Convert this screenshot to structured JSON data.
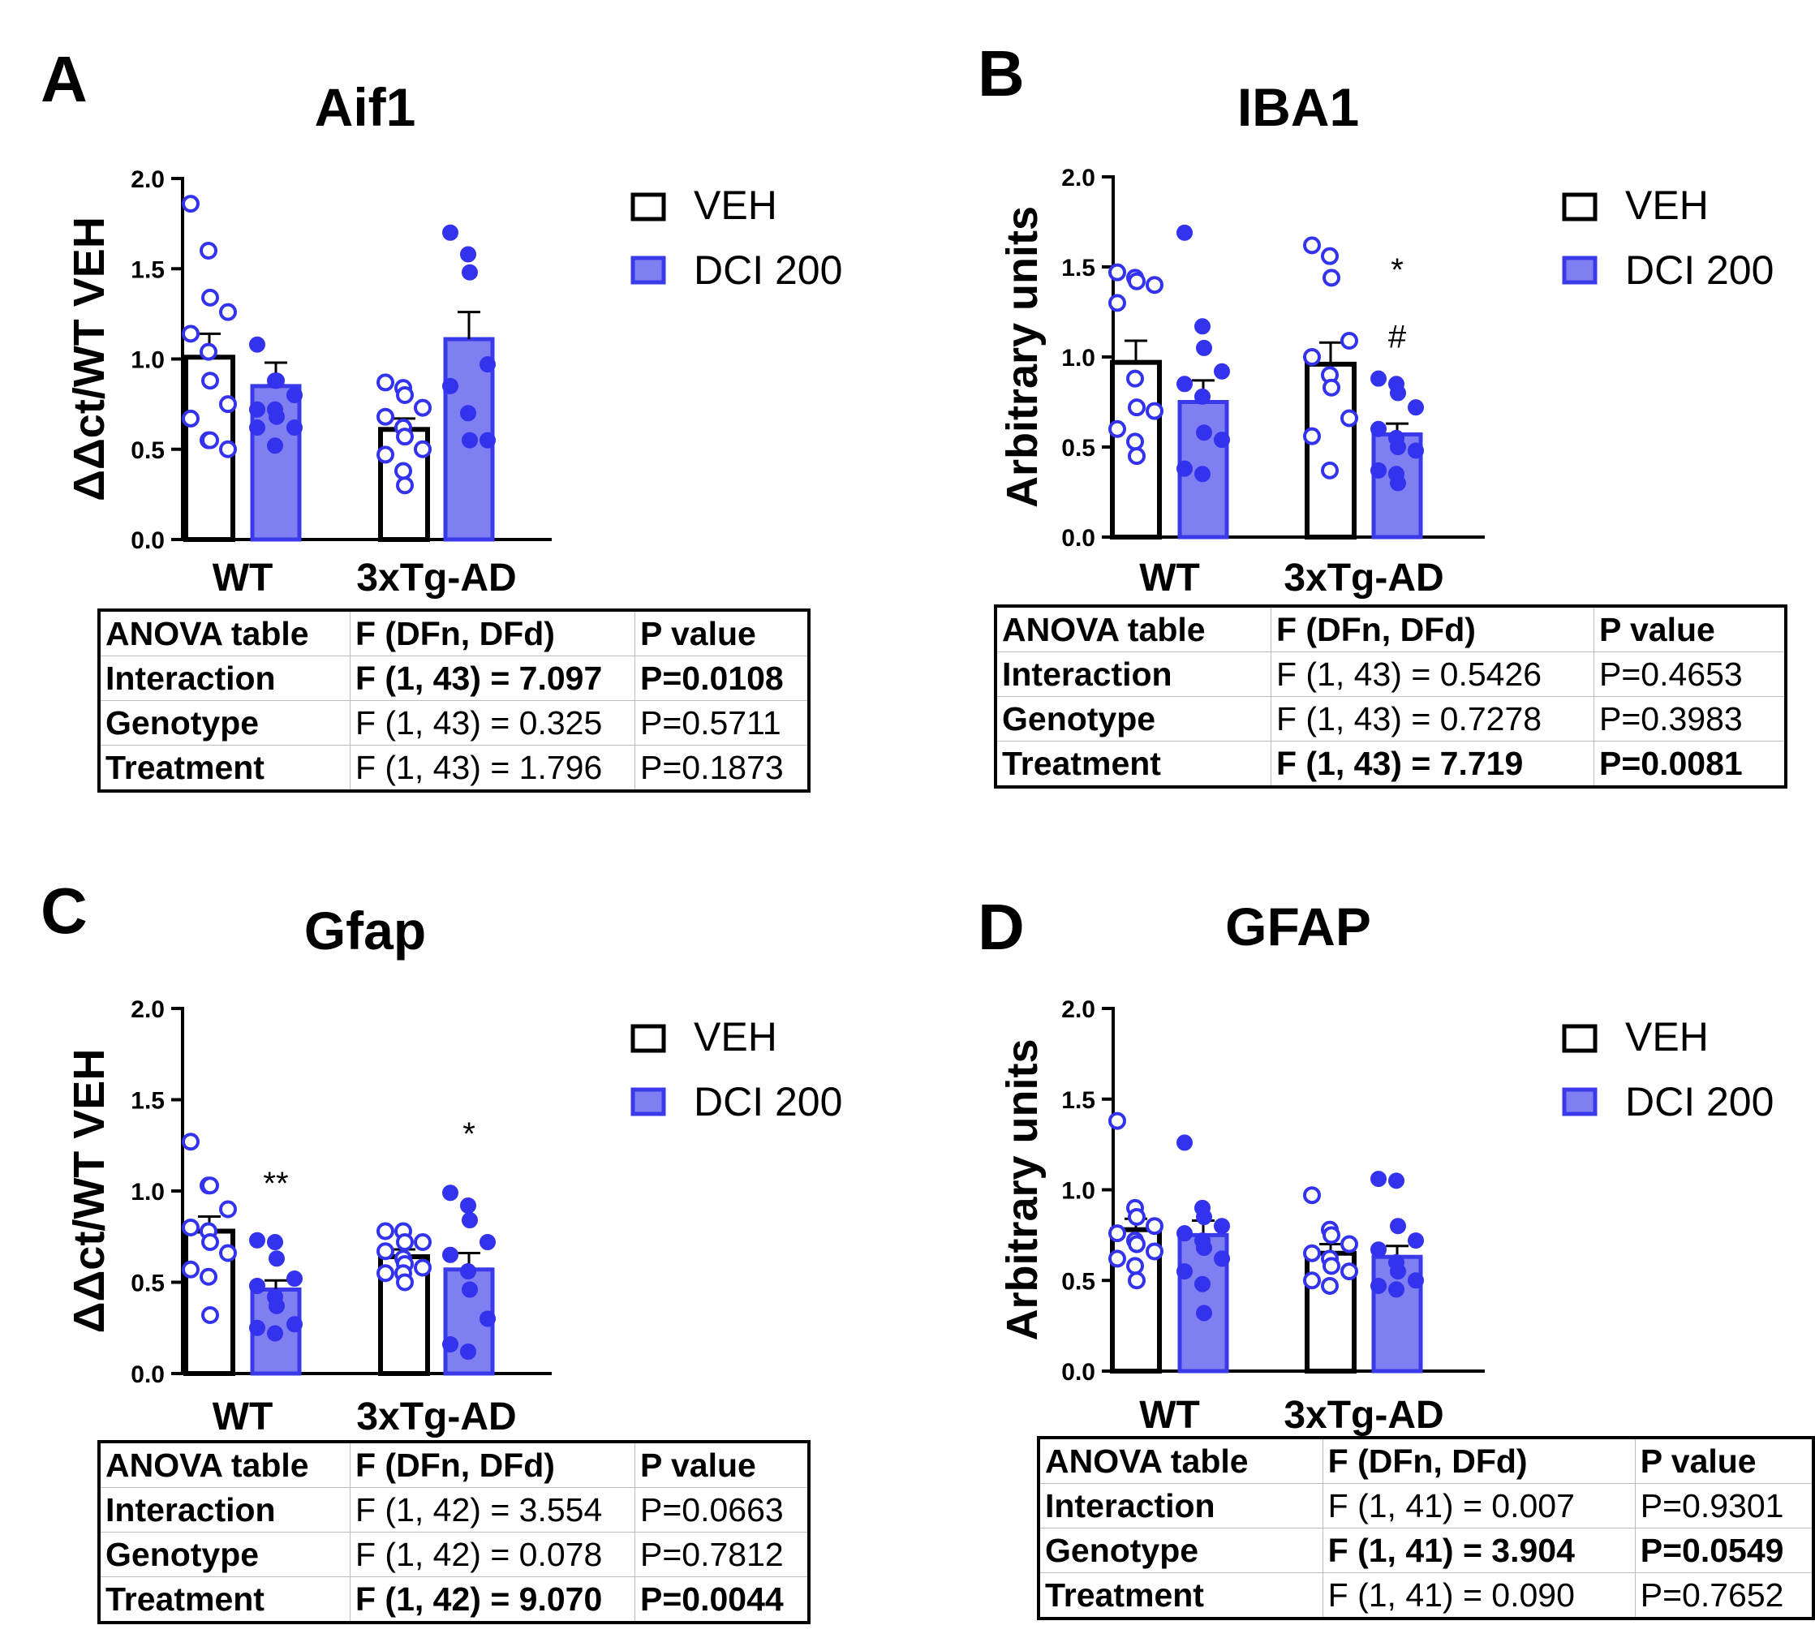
{
  "colors": {
    "veh_fill": "#ffffff",
    "veh_stroke": "#000000",
    "dci_fill": "#7f7ff2",
    "dci_stroke": "#3a3ae8",
    "point": "#3333ee"
  },
  "legend": {
    "veh": "VEH",
    "dci": "DCI 200"
  },
  "anova_header": [
    "ANOVA table",
    "F (DFn, DFd)",
    "P value"
  ],
  "chart_data": [
    {
      "panel": "A",
      "title": "Aif1",
      "type": "bar",
      "ylabel": "ΔΔct/WT VEH",
      "ylim": [
        0,
        2.0
      ],
      "yticks": [
        "0.0",
        "0.5",
        "1.0",
        "1.5",
        "2.0"
      ],
      "categories": [
        "WT",
        "3xTg-AD"
      ],
      "series": [
        {
          "name": "VEH",
          "values": [
            1.01,
            0.61
          ],
          "sem": [
            0.13,
            0.06
          ],
          "points": [
            [
              1.86,
              1.6,
              1.34,
              1.26,
              1.14,
              1.04,
              0.88,
              0.75,
              0.67,
              0.55,
              0.55,
              0.5
            ],
            [
              0.87,
              0.84,
              0.8,
              0.73,
              0.68,
              0.62,
              0.57,
              0.5,
              0.47,
              0.38,
              0.3
            ]
          ]
        },
        {
          "name": "DCI 200",
          "values": [
            0.85,
            1.11
          ],
          "sem": [
            0.13,
            0.15
          ],
          "points": [
            [
              1.08,
              0.88,
              0.88,
              0.8,
              0.72,
              0.72,
              0.68,
              0.62,
              0.62,
              0.52
            ],
            [
              1.7,
              1.58,
              1.48,
              0.97,
              0.85,
              0.7,
              0.55,
              0.55
            ]
          ]
        }
      ],
      "annotations": [],
      "anova": [
        {
          "row": "Interaction",
          "f": "F (1, 43) = 7.097",
          "p": "P=0.0108",
          "bold": true
        },
        {
          "row": "Genotype",
          "f": "F (1, 43) = 0.325",
          "p": "P=0.5711",
          "bold": false
        },
        {
          "row": "Treatment",
          "f": "F (1, 43) = 1.796",
          "p": "P=0.1873",
          "bold": false
        }
      ]
    },
    {
      "panel": "B",
      "title": "IBA1",
      "type": "bar",
      "ylabel": "Arbitrary units",
      "ylim": [
        0,
        2.0
      ],
      "yticks": [
        "0.0",
        "0.5",
        "1.0",
        "1.5",
        "2.0"
      ],
      "categories": [
        "WT",
        "3xTg-AD"
      ],
      "series": [
        {
          "name": "VEH",
          "values": [
            0.97,
            0.96
          ],
          "sem": [
            0.12,
            0.12
          ],
          "points": [
            [
              1.47,
              1.44,
              1.42,
              1.4,
              1.3,
              0.88,
              0.72,
              0.7,
              0.6,
              0.53,
              0.45
            ],
            [
              1.62,
              1.56,
              1.44,
              1.09,
              1.0,
              0.9,
              0.83,
              0.66,
              0.56,
              0.37
            ]
          ]
        },
        {
          "name": "DCI 200",
          "values": [
            0.75,
            0.57
          ],
          "sem": [
            0.12,
            0.06
          ],
          "points": [
            [
              1.69,
              1.17,
              1.05,
              0.92,
              0.85,
              0.78,
              0.58,
              0.54,
              0.38,
              0.35
            ],
            [
              0.88,
              0.85,
              0.8,
              0.72,
              0.6,
              0.55,
              0.5,
              0.48,
              0.37,
              0.35,
              0.3
            ]
          ]
        }
      ],
      "annotations": [
        {
          "text": "*",
          "series": 1,
          "category": 1,
          "y": 1.49
        },
        {
          "text": "#",
          "series": 1,
          "category": 1,
          "y": 1.12
        }
      ],
      "anova": [
        {
          "row": "Interaction",
          "f": "F (1, 43) = 0.5426",
          "p": "P=0.4653",
          "bold": false
        },
        {
          "row": "Genotype",
          "f": "F (1, 43) = 0.7278",
          "p": "P=0.3983",
          "bold": false
        },
        {
          "row": "Treatment",
          "f": "F (1, 43) = 7.719",
          "p": "P=0.0081",
          "bold": true
        }
      ]
    },
    {
      "panel": "C",
      "title": "Gfap",
      "type": "bar",
      "ylabel": "ΔΔct/WT VEH",
      "ylim": [
        0,
        2.0
      ],
      "yticks": [
        "0.0",
        "0.5",
        "1.0",
        "1.5",
        "2.0"
      ],
      "categories": [
        "WT",
        "3xTg-AD"
      ],
      "series": [
        {
          "name": "VEH",
          "values": [
            0.78,
            0.64
          ],
          "sem": [
            0.08,
            0.04
          ],
          "points": [
            [
              1.27,
              1.03,
              1.03,
              0.9,
              0.8,
              0.78,
              0.72,
              0.66,
              0.57,
              0.53,
              0.32
            ],
            [
              0.78,
              0.78,
              0.72,
              0.72,
              0.67,
              0.63,
              0.6,
              0.58,
              0.55,
              0.55,
              0.5
            ]
          ]
        },
        {
          "name": "DCI 200",
          "values": [
            0.46,
            0.57
          ],
          "sem": [
            0.05,
            0.09
          ],
          "points": [
            [
              0.73,
              0.72,
              0.63,
              0.52,
              0.48,
              0.42,
              0.37,
              0.27,
              0.25,
              0.22
            ],
            [
              0.99,
              0.92,
              0.84,
              0.72,
              0.65,
              0.56,
              0.46,
              0.3,
              0.16,
              0.12
            ]
          ]
        }
      ],
      "annotations": [
        {
          "text": "**",
          "series": 1,
          "category": 0,
          "y": 1.05
        },
        {
          "text": "*",
          "series": 1,
          "category": 1,
          "y": 1.32
        }
      ],
      "anova": [
        {
          "row": "Interaction",
          "f": "F (1, 42) = 3.554",
          "p": "P=0.0663",
          "bold": false
        },
        {
          "row": "Genotype",
          "f": "F (1, 42) = 0.078",
          "p": "P=0.7812",
          "bold": false
        },
        {
          "row": "Treatment",
          "f": "F (1, 42) = 9.070",
          "p": "P=0.0044",
          "bold": true
        }
      ]
    },
    {
      "panel": "D",
      "title": "GFAP",
      "type": "bar",
      "ylabel": "Arbitrary units",
      "ylim": [
        0,
        2.0
      ],
      "yticks": [
        "0.0",
        "0.5",
        "1.0",
        "1.5",
        "2.0"
      ],
      "categories": [
        "WT",
        "3xTg-AD"
      ],
      "series": [
        {
          "name": "VEH",
          "values": [
            0.78,
            0.65
          ],
          "sem": [
            0.06,
            0.05
          ],
          "points": [
            [
              1.38,
              0.9,
              0.85,
              0.8,
              0.76,
              0.72,
              0.7,
              0.66,
              0.62,
              0.58,
              0.5
            ],
            [
              0.97,
              0.78,
              0.75,
              0.7,
              0.65,
              0.62,
              0.58,
              0.55,
              0.5,
              0.47
            ]
          ]
        },
        {
          "name": "DCI 200",
          "values": [
            0.75,
            0.63
          ],
          "sem": [
            0.08,
            0.06
          ],
          "points": [
            [
              1.26,
              0.9,
              0.85,
              0.8,
              0.76,
              0.72,
              0.68,
              0.62,
              0.55,
              0.48,
              0.32
            ],
            [
              1.06,
              1.05,
              0.8,
              0.72,
              0.67,
              0.6,
              0.55,
              0.5,
              0.47,
              0.45
            ]
          ]
        }
      ],
      "annotations": [],
      "anova": [
        {
          "row": "Interaction",
          "f": "F (1, 41) = 0.007",
          "p": "P=0.9301",
          "bold": false
        },
        {
          "row": "Genotype",
          "f": "F (1, 41) = 3.904",
          "p": "P=0.0549",
          "bold": true
        },
        {
          "row": "Treatment",
          "f": "F (1, 41) = 0.090",
          "p": "P=0.7652",
          "bold": false
        }
      ]
    }
  ]
}
